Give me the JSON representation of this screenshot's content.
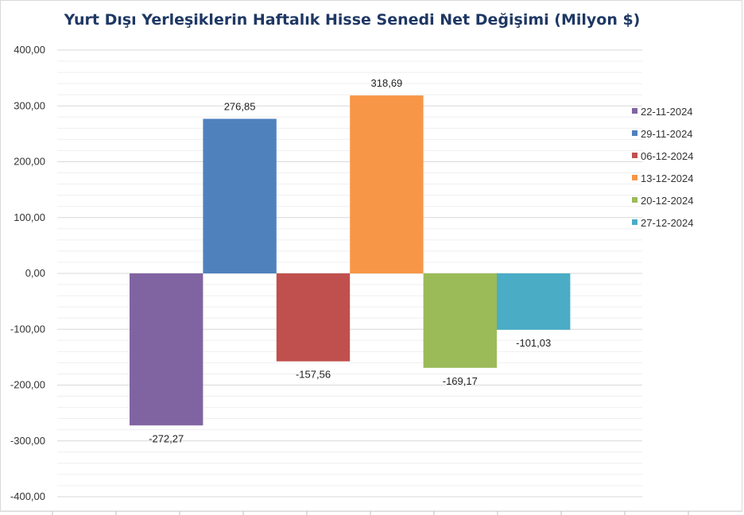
{
  "chart_data": {
    "type": "bar",
    "title": "Yurt Dışı Yerleşiklerin Haftalık Hisse Senedi Net Değişimi (Milyon $)",
    "xlabel": "",
    "ylabel": "",
    "ylim": [
      -400,
      400
    ],
    "y_ticks": [
      "400,00",
      "300,00",
      "200,00",
      "100,00",
      "0,00",
      "-100,00",
      "-200,00",
      "-300,00",
      "-400,00"
    ],
    "legend_position": "right",
    "grid": true,
    "series": [
      {
        "name": "22-11-2024",
        "value": -272.27,
        "label": "-272,27",
        "color": "#8064a2"
      },
      {
        "name": "29-11-2024",
        "value": 276.85,
        "label": "276,85",
        "color": "#4f81bd"
      },
      {
        "name": "06-12-2024",
        "value": -157.56,
        "label": "-157,56",
        "color": "#c0504d"
      },
      {
        "name": "13-12-2024",
        "value": 318.69,
        "label": "318,69",
        "color": "#f79646"
      },
      {
        "name": "20-12-2024",
        "value": -169.17,
        "label": "-169,17",
        "color": "#9bbb59"
      },
      {
        "name": "27-12-2024",
        "value": -101.03,
        "label": "-101,03",
        "color": "#4bacc6"
      }
    ]
  }
}
